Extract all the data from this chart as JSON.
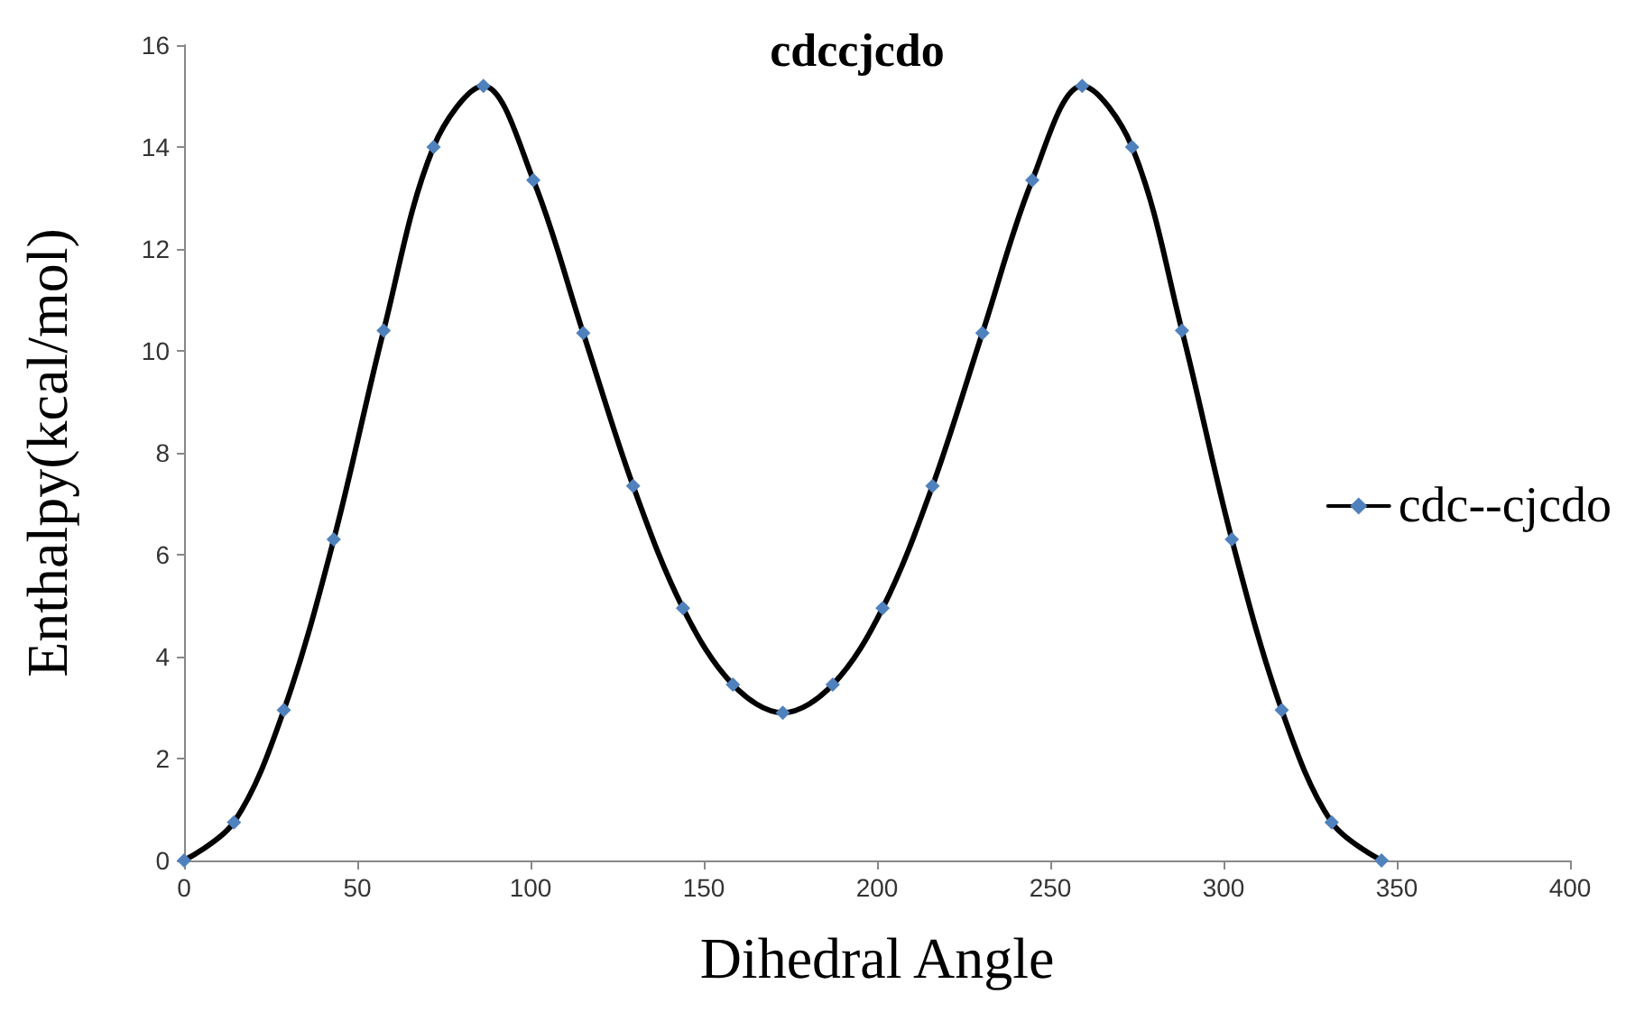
{
  "chart_data": {
    "type": "line",
    "title": "cdccjcdo",
    "xlabel": "Dihedral Angle",
    "ylabel": "Enthalpy(kcal/mol)",
    "x": [
      0,
      14.4,
      28.8,
      43.2,
      57.6,
      72,
      86.4,
      100.8,
      115.2,
      129.6,
      144,
      158.4,
      172.8,
      187.2,
      201.6,
      216,
      230.4,
      244.8,
      259.2,
      273.6,
      288,
      302.4,
      316.8,
      331.2,
      345.6
    ],
    "series": [
      {
        "name": "cdc--cjcdo",
        "color": "#4f81bd",
        "values": [
          0,
          0.75,
          2.95,
          6.3,
          10.4,
          14.0,
          15.2,
          13.35,
          10.35,
          7.35,
          4.95,
          3.45,
          2.9,
          3.45,
          4.95,
          7.35,
          10.35,
          13.35,
          15.2,
          14.0,
          10.4,
          6.3,
          2.95,
          0.75,
          0
        ]
      }
    ],
    "xlim": [
      0,
      400
    ],
    "xticks": [
      0,
      50,
      100,
      150,
      200,
      250,
      300,
      350,
      400
    ],
    "ylim": [
      0,
      16
    ],
    "yticks": [
      0,
      2,
      4,
      6,
      8,
      10,
      12,
      14,
      16
    ],
    "grid": false,
    "legend": "right",
    "marker": "diamond",
    "line_style": "solid"
  }
}
